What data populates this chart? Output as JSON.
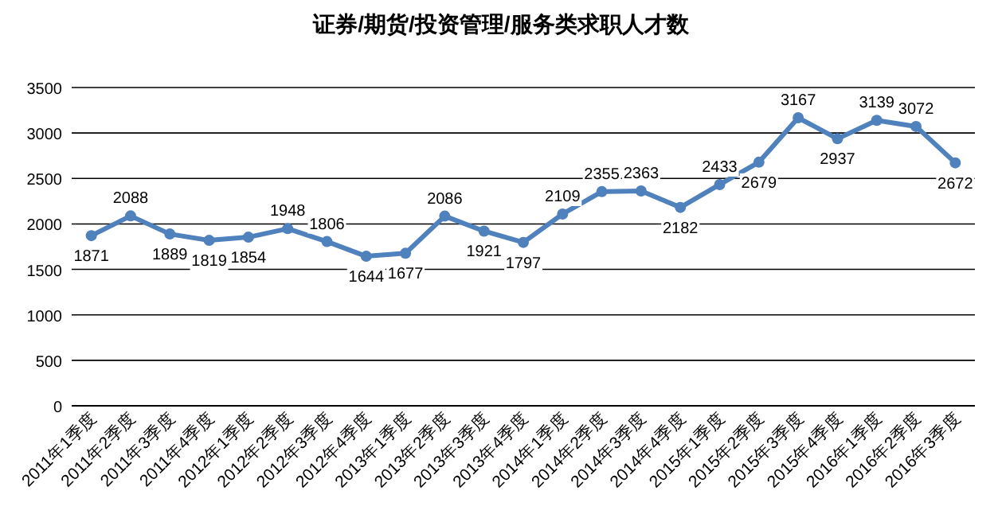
{
  "chart_data": {
    "type": "line",
    "title": "证券/期货/投资管理/服务类求职人才数",
    "categories": [
      "2011年1季度",
      "2011年2季度",
      "2011年3季度",
      "2011年4季度",
      "2012年1季度",
      "2012年2季度",
      "2012年3季度",
      "2012年4季度",
      "2013年1季度",
      "2013年2季度",
      "2013年3季度",
      "2013年4季度",
      "2014年1季度",
      "2014年2季度",
      "2014年3季度",
      "2014年4季度",
      "2015年1季度",
      "2015年2季度",
      "2015年3季度",
      "2015年4季度",
      "2016年1季度",
      "2016年2季度",
      "2016年3季度"
    ],
    "series": [
      {
        "color": "#4f81bd",
        "values": [
          1871,
          2088,
          1889,
          1819,
          1854,
          1948,
          1806,
          1644,
          1677,
          2086,
          1921,
          1797,
          2109,
          2355,
          2363,
          2182,
          2433,
          2679,
          3167,
          2937,
          3139,
          3072,
          2672
        ]
      }
    ],
    "ylim": [
      0,
      3500
    ],
    "yticks": [
      0,
      500,
      1000,
      1500,
      2000,
      2500,
      3000,
      3500
    ],
    "grid": "y",
    "marker": "circle",
    "line_style": "solid",
    "data_labels": true
  }
}
